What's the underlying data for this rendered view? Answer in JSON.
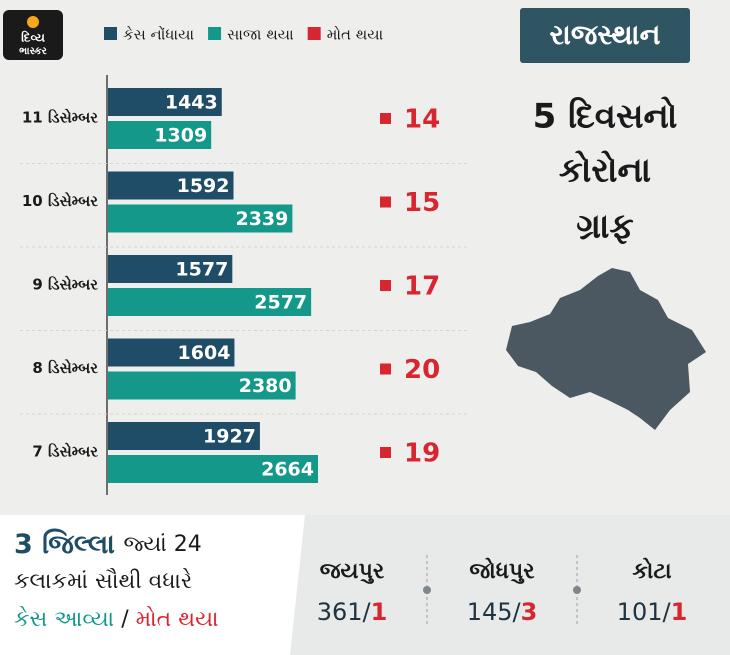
{
  "logo": {
    "line1": "દિવ્ય",
    "line2": "ભાસ્કર"
  },
  "chart_data": {
    "type": "bar",
    "orientation": "horizontal",
    "categories": [
      "11 ડિસેમ્બર",
      "10 ડિસેમ્બર",
      "9 ડિસેમ્બર",
      "8 ડિસેમ્બર",
      "7 ડિસેમ્બર"
    ],
    "series": [
      {
        "name": "કેસ નોંધાયા",
        "color": "#1f4d68",
        "values": [
          1443,
          1592,
          1577,
          1604,
          1927
        ]
      },
      {
        "name": "સાજા થયા",
        "color": "#13988a",
        "values": [
          1309,
          2339,
          2577,
          2380,
          2664
        ]
      },
      {
        "name": "મોત થયા",
        "color": "#d7262f",
        "values": [
          14,
          15,
          17,
          20,
          19
        ]
      }
    ]
  },
  "panel": {
    "state": "રાજસ્થાન",
    "title_lines": [
      "5 દિવસનો",
      "કોરોના",
      "ગ્રાફ"
    ]
  },
  "bottom": {
    "head_bold": "3 જિલ્લા",
    "head_rest": "જ્યાં 24",
    "line2": "કલાકમાં સૌથી વધારે",
    "line3_cases": "કેસ આવ્યા",
    "separator": "/",
    "line3_deaths": "મોત થયા",
    "districts": [
      {
        "name": "જયપુર",
        "cases": 361,
        "deaths": 1
      },
      {
        "name": "જોધપુર",
        "cases": 145,
        "deaths": 3
      },
      {
        "name": "કોટા",
        "cases": 101,
        "deaths": 1
      }
    ]
  }
}
